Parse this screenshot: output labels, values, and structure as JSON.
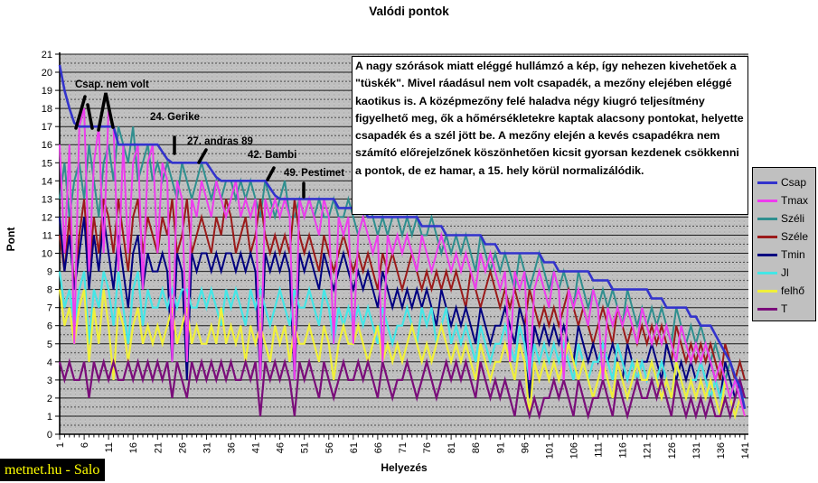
{
  "title": "Valódi pontok",
  "watermark": "metnet.hu - Salo",
  "annotation_box": {
    "text": "A nagy szórások miatt eléggé hullámzó a kép, így nehezen kivehetőek a \"tüskék\". Mivel ráadásul nem volt csapadék, a mezőny elejében eléggé kaotikus is. A középmezőny felé haladva négy kiugró teljesítmény figyelhető meg, ők a hőmérsékletekre kaptak alacsony pontokat, helyette csapadék és a szél jött be. A mezőny elején a kevés csapadékra nem számító előrejelzőnek köszönhetően kicsit gyorsan kezdenek csökkenni a pontok, de ez hamar, a 15. hely körül normalizálódik."
  },
  "callouts": [
    {
      "label": "Csap. nem volt"
    },
    {
      "label": "24. Gerike"
    },
    {
      "label": "27. andras 89"
    },
    {
      "label": "42. Bambi"
    },
    {
      "label": "49. Pestimet"
    }
  ],
  "chart_data": {
    "type": "line",
    "title": "Valódi pontok",
    "xlabel": "Helyezés",
    "ylabel": "Pont",
    "xlim": [
      1,
      141
    ],
    "ylim": [
      0,
      21
    ],
    "x_tick_label_step": 5,
    "y_tick_step": 1,
    "grid": "horizontal major solid, 0.5 minor dashed, gray dithered plot background",
    "legend_position": "right",
    "plot_bg": "#c0c0c0",
    "series": [
      {
        "name": "Csap",
        "color": "#3333cc",
        "values": [
          20.4,
          19,
          18,
          17.2,
          17,
          17,
          17,
          17,
          17,
          17,
          17,
          17,
          16,
          16,
          16,
          16,
          16,
          16,
          16,
          16,
          16,
          15.6,
          15.2,
          15,
          15,
          15,
          15,
          15,
          15,
          15,
          15,
          14.6,
          14.2,
          14,
          14,
          14,
          14,
          14,
          14,
          14,
          14,
          14,
          14,
          13.6,
          13.2,
          13,
          13,
          13,
          13,
          13,
          13,
          13,
          13,
          13,
          13,
          13,
          13,
          12.5,
          12.5,
          12.5,
          12.5,
          12.5,
          12.5,
          12,
          12,
          12,
          12,
          12,
          12,
          12,
          12,
          12,
          12,
          12,
          11.5,
          11.5,
          11.5,
          11.5,
          11.5,
          11,
          11,
          11,
          11,
          11,
          11,
          11,
          11,
          10.5,
          10.5,
          10.5,
          10,
          10,
          10,
          10,
          10,
          10,
          10,
          10,
          10,
          9.5,
          9.5,
          9.5,
          9,
          9,
          9,
          9,
          9,
          9,
          9,
          8.5,
          8.5,
          8.5,
          8.5,
          8,
          8,
          8,
          8,
          8,
          8,
          8,
          8,
          7.5,
          7.5,
          7.5,
          7,
          7,
          7,
          7,
          7,
          6.5,
          6.5,
          6,
          6,
          6,
          5.5,
          5,
          4.5,
          4,
          3.2,
          2.6,
          1.4
        ]
      },
      {
        "name": "Tmax",
        "color": "#ee3cee",
        "values": [
          16,
          10,
          16,
          5,
          17,
          18,
          9,
          15,
          17,
          10,
          18,
          17,
          9,
          16,
          10,
          15,
          16,
          8,
          15,
          16,
          10,
          15,
          14,
          4,
          14,
          13,
          4,
          13,
          12,
          14,
          13,
          12,
          14,
          13,
          12,
          13,
          14,
          12,
          13,
          12,
          13,
          3,
          13,
          12,
          13,
          12,
          13,
          12,
          3,
          13,
          12,
          13,
          12,
          11,
          13,
          12,
          5,
          12,
          11,
          12,
          5,
          11,
          12,
          11,
          10,
          11,
          4,
          11,
          10,
          11,
          10,
          11,
          10,
          9,
          11,
          10,
          9,
          10,
          11,
          10,
          9,
          10,
          9,
          10,
          9,
          8,
          10,
          9,
          10,
          9,
          8,
          9,
          4,
          9,
          8,
          9,
          3,
          8,
          9,
          8,
          7,
          9,
          8,
          3,
          8,
          7,
          8,
          7,
          6,
          8,
          7,
          3,
          7,
          6,
          7,
          6,
          7,
          6,
          5,
          7,
          6,
          5,
          6,
          5,
          6,
          5,
          4,
          6,
          5,
          4,
          5,
          4,
          5,
          4,
          3,
          4,
          3,
          2,
          3,
          2,
          1
        ]
      },
      {
        "name": "Széli",
        "color": "#2f8f8f",
        "values": [
          13,
          15,
          12,
          14,
          15,
          13,
          16,
          14,
          12,
          15,
          16,
          14,
          17,
          16,
          15,
          17,
          14,
          15,
          16,
          14,
          15,
          14,
          15,
          14,
          13,
          15,
          14,
          13,
          14,
          15,
          14,
          13,
          14,
          13,
          14,
          14,
          13,
          14,
          13,
          14,
          13,
          12,
          14,
          13,
          12,
          13,
          14,
          12,
          12,
          13,
          12,
          13,
          12,
          13,
          12,
          12,
          13,
          12,
          12,
          13,
          12,
          11,
          12,
          13,
          12,
          11,
          12,
          11,
          12,
          12,
          11,
          12,
          11,
          12,
          11,
          11,
          12,
          11,
          10,
          11,
          10,
          11,
          10,
          11,
          10,
          9,
          11,
          10,
          9,
          10,
          9,
          10,
          9,
          8,
          10,
          9,
          8,
          9,
          10,
          9,
          8,
          9,
          8,
          9,
          8,
          7,
          9,
          8,
          7,
          8,
          7,
          8,
          7,
          8,
          7,
          6,
          8,
          7,
          6,
          7,
          6,
          7,
          6,
          7,
          6,
          5,
          7,
          6,
          5,
          6,
          5,
          6,
          5,
          4,
          5,
          4,
          3,
          4,
          3,
          4,
          3
        ]
      },
      {
        "name": "Széle",
        "color": "#9b1a1a",
        "values": [
          11,
          9,
          12,
          8,
          11,
          13,
          9,
          12,
          10,
          13,
          12,
          10,
          13,
          11,
          9,
          12,
          13,
          10,
          12,
          11,
          10,
          12,
          11,
          13,
          10,
          11,
          13,
          10,
          11,
          12,
          11,
          10,
          12,
          11,
          13,
          12,
          10,
          11,
          12,
          10,
          11,
          13,
          11,
          10,
          11,
          10,
          11,
          10,
          13,
          11,
          10,
          11,
          10,
          9,
          11,
          10,
          9,
          10,
          11,
          10,
          9,
          10,
          9,
          10,
          9,
          8,
          10,
          9,
          10,
          9,
          8,
          9,
          10,
          9,
          8,
          9,
          8,
          9,
          8,
          9,
          8,
          9,
          8,
          7,
          9,
          8,
          7,
          8,
          9,
          8,
          7,
          8,
          7,
          8,
          7,
          6,
          8,
          7,
          6,
          7,
          6,
          7,
          6,
          7,
          8,
          7,
          6,
          7,
          6,
          5,
          6,
          7,
          6,
          5,
          7,
          6,
          5,
          6,
          5,
          6,
          5,
          6,
          5,
          6,
          5,
          4,
          6,
          5,
          4,
          5,
          4,
          5,
          4,
          5,
          4,
          3,
          5,
          4,
          3,
          4,
          3
        ]
      },
      {
        "name": "Tmin",
        "color": "#000080",
        "values": [
          12,
          9,
          11,
          8,
          10,
          12,
          8,
          11,
          9,
          12,
          10,
          8,
          11,
          9,
          7,
          10,
          11,
          8,
          10,
          9,
          9,
          10,
          9,
          4,
          10,
          9,
          3,
          10,
          9,
          10,
          10,
          9,
          10,
          9,
          10,
          10,
          9,
          10,
          9,
          10,
          9,
          3,
          10,
          9,
          10,
          9,
          10,
          9,
          3,
          10,
          9,
          10,
          9,
          8,
          10,
          9,
          8,
          9,
          10,
          9,
          8,
          9,
          8,
          9,
          8,
          7,
          9,
          8,
          7,
          8,
          7,
          8,
          7,
          8,
          7,
          8,
          7,
          6,
          8,
          7,
          6,
          7,
          6,
          7,
          6,
          5,
          7,
          6,
          5,
          6,
          6,
          7,
          6,
          5,
          7,
          6,
          2,
          6,
          5,
          6,
          5,
          6,
          5,
          6,
          5,
          4,
          6,
          5,
          4,
          5,
          4,
          5,
          4,
          5,
          4,
          3,
          5,
          4,
          3,
          4,
          4,
          5,
          4,
          3,
          5,
          4,
          3,
          4,
          3,
          4,
          3,
          4,
          3,
          4,
          3,
          2,
          4,
          3,
          2,
          3,
          2
        ]
      },
      {
        "name": "Jl",
        "color": "#44e6e6",
        "values": [
          9,
          7,
          8,
          6,
          8,
          9,
          5,
          8,
          7,
          9,
          8,
          6,
          9,
          7,
          5,
          8,
          9,
          6,
          8,
          7,
          7,
          8,
          7,
          8,
          7,
          8,
          8,
          7,
          7,
          8,
          7,
          8,
          7,
          6,
          8,
          7,
          8,
          7,
          6,
          8,
          7,
          8,
          7,
          6,
          7,
          8,
          7,
          6,
          8,
          7,
          7,
          8,
          7,
          6,
          8,
          7,
          5,
          7,
          6,
          7,
          6,
          7,
          6,
          7,
          6,
          5,
          7,
          6,
          5,
          6,
          6,
          7,
          6,
          5,
          7,
          6,
          7,
          5,
          6,
          7,
          5,
          6,
          5,
          6,
          5,
          4,
          6,
          5,
          4,
          5,
          5,
          6,
          5,
          4,
          6,
          5,
          3,
          5,
          4,
          5,
          4,
          5,
          4,
          5,
          4,
          3,
          5,
          4,
          3,
          4,
          4,
          5,
          4,
          3,
          5,
          4,
          3,
          4,
          3,
          4,
          3,
          4,
          3,
          4,
          3,
          2,
          4,
          3,
          2,
          3,
          3,
          4,
          3,
          2,
          3,
          2,
          3,
          2,
          3,
          2,
          2
        ]
      },
      {
        "name": "felhő",
        "color": "#f0f03a",
        "values": [
          8,
          6,
          7,
          5,
          7,
          8,
          4,
          7,
          5,
          8,
          6,
          3,
          7,
          6,
          4,
          6,
          7,
          5,
          6,
          5,
          6,
          5,
          6,
          7,
          5,
          6,
          7,
          5,
          6,
          5,
          5,
          6,
          5,
          7,
          5,
          6,
          5,
          6,
          4,
          6,
          5,
          6,
          5,
          4,
          6,
          5,
          6,
          4,
          6,
          5,
          5,
          6,
          5,
          4,
          6,
          5,
          3,
          5,
          6,
          5,
          5,
          6,
          5,
          4,
          5,
          6,
          4,
          5,
          4,
          5,
          4,
          5,
          6,
          5,
          4,
          5,
          4,
          5,
          6,
          5,
          4,
          5,
          4,
          5,
          4,
          3,
          5,
          4,
          3,
          4,
          4,
          5,
          4,
          3,
          5,
          4,
          1,
          4,
          3,
          4,
          3,
          4,
          3,
          4,
          5,
          4,
          3,
          4,
          3,
          2,
          3,
          4,
          3,
          2,
          4,
          3,
          2,
          3,
          4,
          3,
          3,
          4,
          3,
          2,
          3,
          2,
          4,
          3,
          2,
          3,
          2,
          3,
          2,
          3,
          2,
          1,
          3,
          2,
          1,
          2,
          1
        ]
      },
      {
        "name": "T",
        "color": "#7a0d7a",
        "values": [
          4,
          3,
          4,
          3,
          3,
          4,
          2,
          4,
          3,
          4,
          3,
          4,
          3,
          3,
          4,
          3,
          4,
          3,
          4,
          3,
          4,
          3,
          4,
          2,
          4,
          3,
          2,
          4,
          3,
          4,
          3,
          4,
          3,
          4,
          3,
          4,
          3,
          3,
          4,
          3,
          4,
          1,
          4,
          3,
          4,
          3,
          4,
          3,
          1,
          4,
          3,
          4,
          3,
          2,
          4,
          3,
          2,
          3,
          4,
          3,
          3,
          4,
          3,
          4,
          3,
          2,
          4,
          3,
          2,
          3,
          3,
          4,
          3,
          2,
          3,
          4,
          3,
          2,
          3,
          4,
          3,
          4,
          3,
          4,
          3,
          2,
          4,
          3,
          2,
          3,
          2,
          3,
          2,
          1,
          3,
          2,
          1,
          2,
          1,
          2,
          2,
          3,
          2,
          3,
          2,
          1,
          3,
          2,
          1,
          2,
          2,
          3,
          2,
          1,
          3,
          2,
          1,
          2,
          3,
          2,
          2,
          3,
          2,
          3,
          2,
          1,
          3,
          2,
          1,
          2,
          1,
          2,
          1,
          2,
          1,
          1,
          2,
          1,
          2,
          3,
          2
        ]
      }
    ]
  }
}
